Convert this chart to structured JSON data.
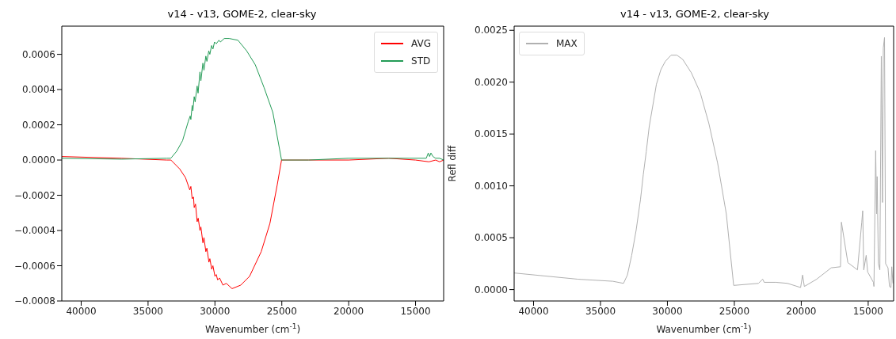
{
  "chart_data": [
    {
      "type": "line",
      "title": "v14 - v13, GOME-2, clear-sky",
      "xlabel": "Wavenumber (cm$^{-1}$)",
      "xlim": [
        41450,
        12900
      ],
      "xticks": [
        40000,
        35000,
        30000,
        25000,
        20000,
        15000
      ],
      "ylim": [
        -0.0008,
        0.00076
      ],
      "yticks": [
        {
          "value": -0.0008,
          "label": "−0.0008"
        },
        {
          "value": -0.0006,
          "label": "−0.0006"
        },
        {
          "value": -0.0004,
          "label": "−0.0004"
        },
        {
          "value": -0.0002,
          "label": "−0.0002"
        },
        {
          "value": 0,
          "label": "0.0000"
        },
        {
          "value": 0.0002,
          "label": "0.0002"
        },
        {
          "value": 0.0004,
          "label": "0.0004"
        },
        {
          "value": 0.0006,
          "label": "0.0006"
        }
      ],
      "legend": "top right",
      "series": [
        {
          "name": "AVG",
          "color": "#ff0000",
          "x": [
            41450,
            37000,
            33600,
            33290,
            32640,
            32200,
            31880,
            31800,
            31700,
            31600,
            31550,
            31450,
            31330,
            31250,
            31120,
            31050,
            30900,
            30820,
            30680,
            30600,
            30450,
            30380,
            30240,
            30150,
            30000,
            29900,
            29800,
            29650,
            29400,
            29150,
            28720,
            28070,
            27410,
            26540,
            25890,
            25340,
            25020,
            23000,
            20000,
            17000,
            15000,
            14000,
            13500,
            13200,
            12900
          ],
          "values": [
            2e-05,
            1e-05,
            0,
            0,
            -5e-05,
            -0.0001,
            -0.00017,
            -0.00015,
            -0.00022,
            -0.00021,
            -0.00027,
            -0.00025,
            -0.00035,
            -0.00033,
            -0.0004,
            -0.00038,
            -0.00047,
            -0.00044,
            -0.00052,
            -0.0005,
            -0.00058,
            -0.00056,
            -0.00062,
            -0.0006,
            -0.00066,
            -0.00065,
            -0.00068,
            -0.00067,
            -0.00071,
            -0.0007,
            -0.00073,
            -0.00071,
            -0.00066,
            -0.00052,
            -0.00036,
            -0.00014,
            0,
            0,
            0,
            1e-05,
            0,
            -1e-05,
            0,
            -1e-05,
            0
          ]
        },
        {
          "name": "STD",
          "color": "#239b56",
          "x": [
            41450,
            37000,
            33600,
            33300,
            32860,
            32420,
            31990,
            31850,
            31800,
            31700,
            31650,
            31550,
            31480,
            31330,
            31260,
            31120,
            31050,
            30900,
            30820,
            30680,
            30600,
            30460,
            30380,
            30250,
            30150,
            30030,
            29900,
            29700,
            29590,
            29300,
            28940,
            28280,
            27630,
            26980,
            26320,
            25670,
            25020,
            23000,
            20000,
            17000,
            15500,
            14500,
            14200,
            14050,
            13950,
            13850,
            13700,
            13500,
            13200,
            12900
          ],
          "values": [
            1e-05,
            5e-06,
            1e-05,
            1e-05,
            5e-05,
            0.00011,
            0.00022,
            0.00025,
            0.00023,
            0.00031,
            0.00028,
            0.00036,
            0.00033,
            0.00042,
            0.00038,
            0.0005,
            0.00045,
            0.00055,
            0.00051,
            0.00059,
            0.00056,
            0.00062,
            0.0006,
            0.00065,
            0.00063,
            0.00067,
            0.00066,
            0.00068,
            0.00067,
            0.00069,
            0.00069,
            0.00068,
            0.00062,
            0.00054,
            0.00041,
            0.00027,
            0,
            0,
            1e-05,
            1e-05,
            1e-05,
            1e-05,
            1e-05,
            4e-05,
            2e-05,
            4e-05,
            2e-05,
            1e-05,
            1e-05,
            0
          ]
        }
      ]
    },
    {
      "type": "line",
      "title": "v14 - v13, GOME-2, clear-sky",
      "xlabel": "Wavenumber (cm$^{-1}$)",
      "ylabel": "Refl diff",
      "xlim": [
        41450,
        13100
      ],
      "xticks": [
        40000,
        35000,
        30000,
        25000,
        20000,
        15000
      ],
      "ylim": [
        -0.00011,
        0.00254
      ],
      "yticks": [
        {
          "value": 0,
          "label": "0.0000"
        },
        {
          "value": 0.0005,
          "label": "0.0005"
        },
        {
          "value": 0.001,
          "label": "0.0010"
        },
        {
          "value": 0.0015,
          "label": "0.0015"
        },
        {
          "value": 0.002,
          "label": "0.0020"
        },
        {
          "value": 0.0025,
          "label": "0.0025"
        }
      ],
      "legend": "top left",
      "series": [
        {
          "name": "MAX",
          "color": "#b0b0b0",
          "x": [
            41450,
            36690,
            34080,
            33280,
            32990,
            32670,
            32340,
            32010,
            31800,
            31580,
            31360,
            31030,
            30820,
            30490,
            30160,
            29730,
            29290,
            28860,
            28210,
            27550,
            26900,
            26250,
            25600,
            25050,
            23200,
            22880,
            22770,
            21900,
            21030,
            20050,
            19900,
            19770,
            18850,
            17760,
            17070,
            17000,
            16520,
            15800,
            15480,
            15410,
            15330,
            15150,
            15040,
            14610,
            14570,
            14440,
            14370,
            14330,
            14240,
            14130,
            14020,
            13930,
            13870,
            13780,
            13700,
            13520,
            13410,
            13300,
            13240,
            13150
          ],
          "values": [
            0.00016,
            0.0001,
            8e-05,
            6e-05,
            0.00014,
            0.00033,
            0.00057,
            0.00087,
            0.00111,
            0.00133,
            0.00157,
            0.00182,
            0.00198,
            0.00212,
            0.0022,
            0.00226,
            0.00226,
            0.00222,
            0.00209,
            0.0019,
            0.0016,
            0.00122,
            0.00073,
            4e-05,
            6e-05,
            0.0001,
            7e-05,
            7e-05,
            6e-05,
            2e-05,
            0.00014,
            3e-05,
            0.0001,
            0.00021,
            0.00022,
            0.00065,
            0.00026,
            0.00019,
            0.00065,
            0.00076,
            0.00019,
            0.00033,
            0.00017,
            7e-05,
            3e-05,
            0.00134,
            0.00073,
            0.00109,
            0.00025,
            0.00019,
            0.00225,
            0.00084,
            0.00233,
            0.00243,
            0.00025,
            0.00021,
            3e-05,
            2e-05,
            0.00022,
            6e-05
          ]
        }
      ]
    }
  ]
}
